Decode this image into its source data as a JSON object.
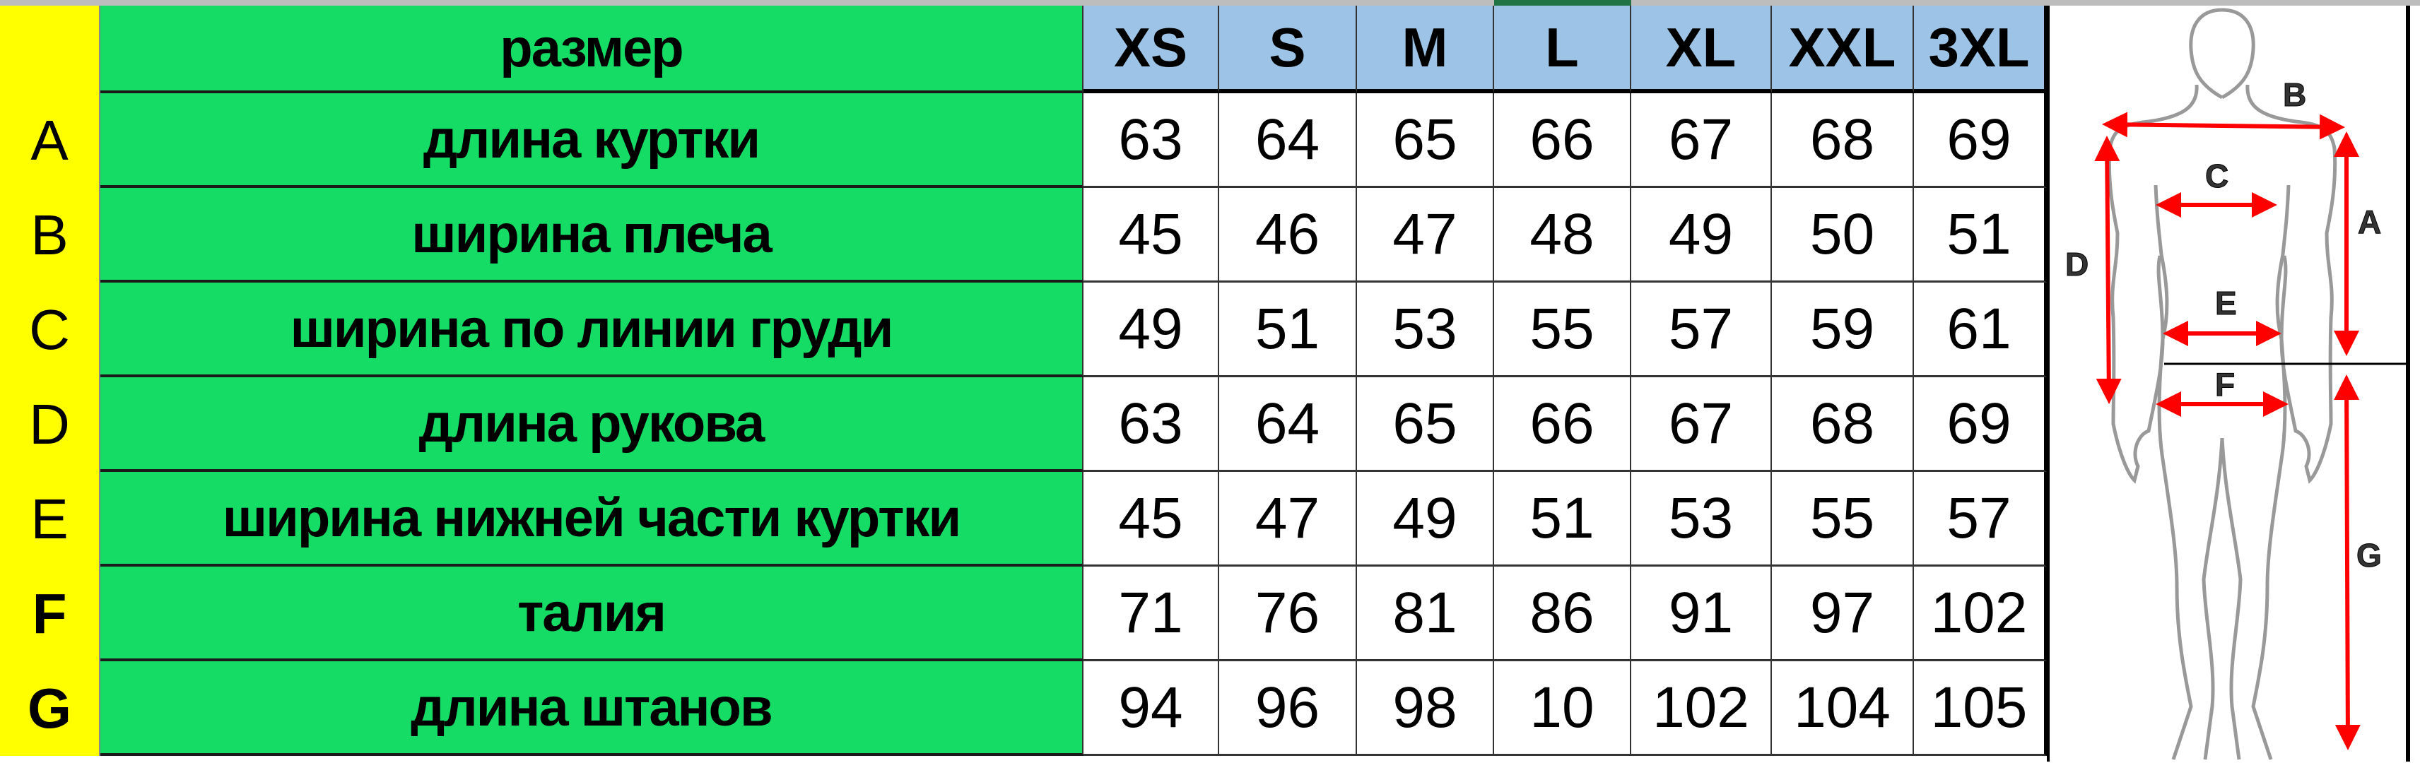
{
  "header": {
    "label": "размер",
    "sizes": [
      "XS",
      "S",
      "M",
      "L",
      "XL",
      "XXL",
      "3XL"
    ]
  },
  "rows": [
    {
      "letter": "A",
      "label": "длина куртки",
      "values": [
        "63",
        "64",
        "65",
        "66",
        "67",
        "68",
        "69"
      ]
    },
    {
      "letter": "B",
      "label": "ширина плеча",
      "values": [
        "45",
        "46",
        "47",
        "48",
        "49",
        "50",
        "51"
      ]
    },
    {
      "letter": "C",
      "label": "ширина по линии груди",
      "values": [
        "49",
        "51",
        "53",
        "55",
        "57",
        "59",
        "61"
      ]
    },
    {
      "letter": "D",
      "label": "длина рукова",
      "values": [
        "63",
        "64",
        "65",
        "66",
        "67",
        "68",
        "69"
      ]
    },
    {
      "letter": "E",
      "label": "ширина нижней части куртки",
      "values": [
        "45",
        "47",
        "49",
        "51",
        "53",
        "55",
        "57"
      ]
    },
    {
      "letter": "F",
      "label": "талия",
      "values": [
        "71",
        "76",
        "81",
        "86",
        "91",
        "97",
        "102"
      ]
    },
    {
      "letter": "G",
      "label": "длина штанов",
      "values": [
        "94",
        "96",
        "98",
        "10",
        "102",
        "104",
        "105"
      ]
    }
  ],
  "figure": {
    "labels": {
      "A": "A",
      "B": "B",
      "C": "C",
      "D": "D",
      "E": "E",
      "F": "F",
      "G": "G"
    }
  },
  "colors": {
    "letter_column": "#ffff00",
    "label_column": "#14dc64",
    "size_header": "#9dc3e6",
    "arrows": "#ff0000"
  }
}
